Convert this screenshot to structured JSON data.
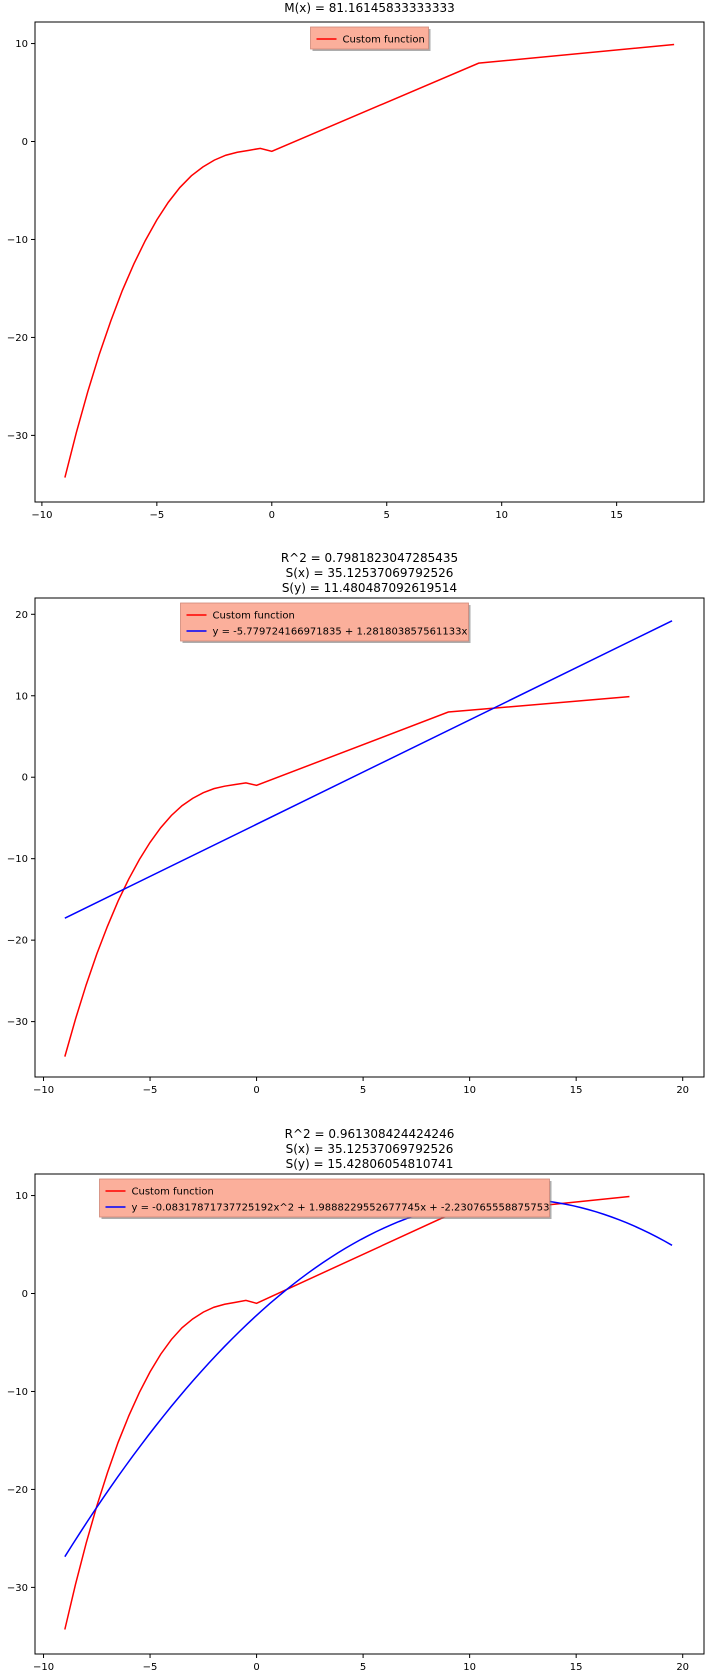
{
  "chart_data": [
    {
      "type": "line",
      "title_lines": [
        "M(x) = 81.16145833333333"
      ],
      "xlabel": "",
      "ylabel": "",
      "xlim": [
        -10.3,
        18.8
      ],
      "ylim": [
        -36.8,
        12.2
      ],
      "xticks": [
        -10,
        -5,
        0,
        5,
        10,
        15
      ],
      "yticks": [
        -30,
        -20,
        -10,
        0,
        10
      ],
      "xtick_labels": [
        "−10",
        "−5",
        "0",
        "5",
        "10",
        "15"
      ],
      "ytick_labels": [
        "−30",
        "−20",
        "−10",
        "0",
        "10"
      ],
      "grid": false,
      "legend_placement": "top-center",
      "legend": [
        "Custom function"
      ],
      "series": [
        {
          "name": "Custom function",
          "color": "#ff0000",
          "x": [
            -9,
            -8.5,
            -8,
            -7.5,
            -7,
            -6.5,
            -6,
            -5.5,
            -5,
            -4.5,
            -4,
            -3.5,
            -3,
            -2.5,
            -2,
            -1.5,
            -1,
            -0.5,
            0,
            9,
            17.5
          ],
          "y": [
            -34.3,
            -29.7,
            -25.5,
            -21.7,
            -18.3,
            -15.2,
            -12.5,
            -10.1,
            -8.0,
            -6.2,
            -4.7,
            -3.5,
            -2.6,
            -1.9,
            -1.4,
            -1.1,
            -0.9,
            -0.7,
            -1.0,
            8.0,
            9.9
          ]
        }
      ]
    },
    {
      "type": "line",
      "title_lines": [
        "R^2 = 0.7981823047285435",
        "S(x) = 35.12537069792526",
        "S(y) = 11.480487092619514"
      ],
      "xlabel": "",
      "ylabel": "",
      "xlim": [
        -10.4,
        21.0
      ],
      "ylim": [
        -36.8,
        22.0
      ],
      "xticks": [
        -10,
        -5,
        0,
        5,
        10,
        15,
        20
      ],
      "yticks": [
        -30,
        -20,
        -10,
        0,
        10,
        20
      ],
      "xtick_labels": [
        "−10",
        "−5",
        "0",
        "5",
        "10",
        "15",
        "20"
      ],
      "ytick_labels": [
        "−30",
        "−20",
        "−10",
        "0",
        "10",
        "20"
      ],
      "grid": false,
      "legend_placement": "top-center",
      "legend": [
        "Custom function",
        "y = -5.779724166971835 + 1.281803857561133x"
      ],
      "series": [
        {
          "name": "Custom function",
          "color": "#ff0000",
          "x": [
            -9,
            -8.5,
            -8,
            -7.5,
            -7,
            -6.5,
            -6,
            -5.5,
            -5,
            -4.5,
            -4,
            -3.5,
            -3,
            -2.5,
            -2,
            -1.5,
            -1,
            -0.5,
            0,
            9,
            17.5
          ],
          "y": [
            -34.3,
            -29.7,
            -25.5,
            -21.7,
            -18.3,
            -15.2,
            -12.5,
            -10.1,
            -8.0,
            -6.2,
            -4.7,
            -3.5,
            -2.6,
            -1.9,
            -1.4,
            -1.1,
            -0.9,
            -0.7,
            -1.0,
            8.0,
            9.9
          ]
        },
        {
          "name": "y = -5.779724166971835 + 1.281803857561133x",
          "color": "#0000ff",
          "x": [
            -9,
            19.5
          ],
          "y": [
            -17.3,
            19.2
          ]
        }
      ]
    },
    {
      "type": "line",
      "title_lines": [
        "R^2 = 0.961308424424246",
        "S(x) = 35.12537069792526",
        "S(y) = 15.42806054810741"
      ],
      "xlabel": "",
      "ylabel": "",
      "xlim": [
        -10.4,
        21.0
      ],
      "ylim": [
        -36.8,
        12.2
      ],
      "xticks": [
        -10,
        -5,
        0,
        5,
        10,
        15,
        20
      ],
      "yticks": [
        -30,
        -20,
        -10,
        0,
        10
      ],
      "xtick_labels": [
        "−10",
        "−5",
        "0",
        "5",
        "10",
        "15",
        "20"
      ],
      "ytick_labels": [
        "−30",
        "−20",
        "−10",
        "0",
        "10"
      ],
      "grid": false,
      "legend_placement": "top-center",
      "legend": [
        "Custom function",
        "y = -0.0831787173772519​2x^2 + 1.9888229552677745x + -2.230765558875753"
      ],
      "series": [
        {
          "name": "Custom function",
          "color": "#ff0000",
          "x": [
            -9,
            -8.5,
            -8,
            -7.5,
            -7,
            -6.5,
            -6,
            -5.5,
            -5,
            -4.5,
            -4,
            -3.5,
            -3,
            -2.5,
            -2,
            -1.5,
            -1,
            -0.5,
            0,
            9,
            17.5
          ],
          "y": [
            -34.3,
            -29.7,
            -25.5,
            -21.7,
            -18.3,
            -15.2,
            -12.5,
            -10.1,
            -8.0,
            -6.2,
            -4.7,
            -3.5,
            -2.6,
            -1.9,
            -1.4,
            -1.1,
            -0.9,
            -0.7,
            -1.0,
            8.0,
            9.9
          ]
        },
        {
          "name": "y = -0.08317871737725192x^2 + 1.9888229552677745x + -2.230765558875753",
          "color": "#0000ff",
          "poly": [
            -0.08317871737725192,
            1.9888229552677745,
            -2.230765558875753
          ],
          "x_range": [
            -9,
            19.5
          ]
        }
      ]
    }
  ]
}
